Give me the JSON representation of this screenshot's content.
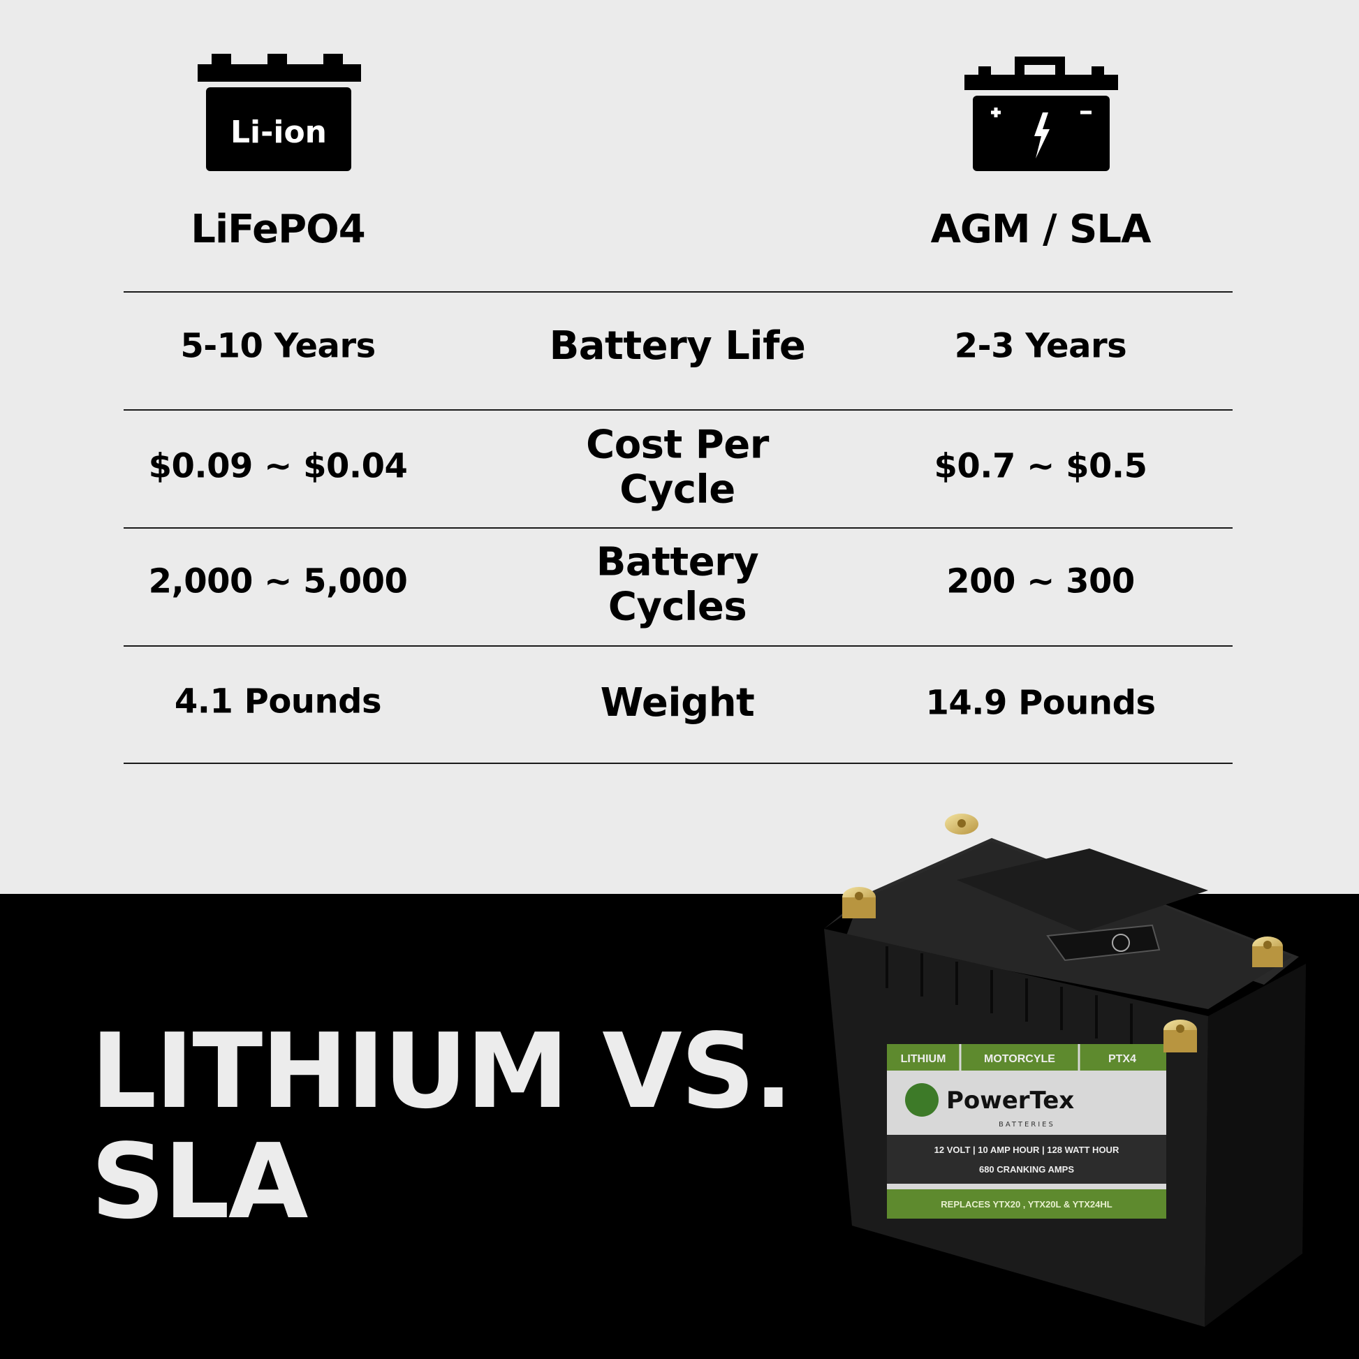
{
  "columns": {
    "left": {
      "label": "LiFePO4",
      "icon": "li-ion-battery-icon",
      "icon_text": "Li-ion"
    },
    "right": {
      "label": "AGM / SLA",
      "icon": "lead-acid-battery-icon"
    }
  },
  "rows": [
    {
      "metric": "Battery Life",
      "lithium": "5-10 Years",
      "sla": "2-3 Years"
    },
    {
      "metric": "Cost Per Cycle",
      "lithium": "$0.09 ~ $0.04",
      "sla": "$0.7 ~ $0.5"
    },
    {
      "metric": "Battery Cycles",
      "lithium": "2,000 ~ 5,000",
      "sla": "200 ~ 300"
    },
    {
      "metric": "Weight",
      "lithium": "4.1 Pounds",
      "sla": "14.9 Pounds"
    }
  ],
  "title": {
    "line1": "LITHIUM VS.",
    "line2": "SLA"
  },
  "product_label": {
    "tag1": "LITHIUM",
    "tag2": "MOTORCYLE",
    "tag3": "PTX4",
    "brand": "PowerTex",
    "brand_sub": "BATTERIES",
    "spec1": "12 VOLT | 10 AMP HOUR | 128 WATT HOUR",
    "spec2": "680 CRANKING AMPS",
    "replaces": "REPLACES YTX20 , YTX20L & YTX24HL"
  },
  "colors": {
    "background": "#ebebeb",
    "band": "#000000",
    "label_green": "#5e8a2e"
  }
}
